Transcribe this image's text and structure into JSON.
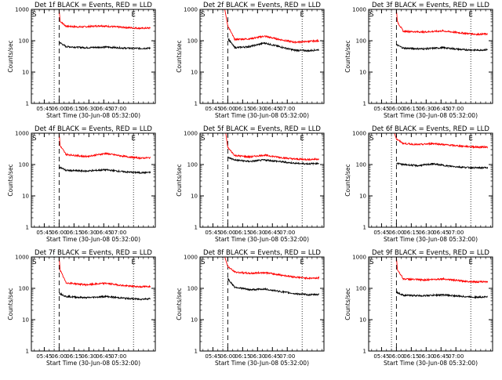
{
  "chart_data": [
    {
      "type": "line",
      "title": "Det 1f BLACK = Events, RED = LLD",
      "xlabel": "Start Time (30-Jun-08 05:32:00)",
      "ylabel": "Counts/sec",
      "xticks": [
        "05:45",
        "06:00",
        "06:15",
        "06:30",
        "06:45",
        "07:00"
      ],
      "yticks": [
        "1",
        "10",
        "100",
        "1000"
      ],
      "ylim": [
        1,
        1000
      ],
      "yscale": "log",
      "xlim_minutes_after_start": [
        0,
        125
      ],
      "markers": {
        "S": {
          "label": "S",
          "x": 3
        },
        "E": {
          "label": "E",
          "x": 103
        }
      },
      "dotted_lines": [
        23,
        103
      ],
      "dashed_lines": [
        28
      ],
      "series": [
        {
          "color": "#ff0000",
          "points": [
            [
              0,
              1000
            ],
            [
              28,
              1000
            ],
            [
              29,
              420
            ],
            [
              35,
              290
            ],
            [
              50,
              275
            ],
            [
              70,
              300
            ],
            [
              90,
              270
            ],
            [
              110,
              250
            ],
            [
              120,
              255
            ]
          ]
        },
        {
          "color": "#000000",
          "points": [
            [
              28,
              90
            ],
            [
              35,
              65
            ],
            [
              55,
              60
            ],
            [
              75,
              63
            ],
            [
              95,
              58
            ],
            [
              110,
              57
            ],
            [
              120,
              58
            ]
          ]
        }
      ]
    },
    {
      "type": "line",
      "title": "Det 2f BLACK = Events, RED = LLD",
      "xlabel": "Start Time (30-Jun-08 05:32:00)",
      "ylabel": "Counts/sec",
      "xticks": [
        "05:45",
        "06:00",
        "06:15",
        "06:30",
        "06:45",
        "07:00"
      ],
      "yticks": [
        "1",
        "10",
        "100",
        "1000"
      ],
      "ylim": [
        1,
        1000
      ],
      "yscale": "log",
      "xlim_minutes_after_start": [
        0,
        125
      ],
      "markers": {
        "S": {
          "label": "S",
          "x": 3
        },
        "E": {
          "label": "E",
          "x": 103
        }
      },
      "dotted_lines": [
        23,
        103
      ],
      "dashed_lines": [
        28
      ],
      "series": [
        {
          "color": "#ff0000",
          "points": [
            [
              0,
              1000
            ],
            [
              25,
              1000
            ],
            [
              28,
              300
            ],
            [
              35,
              110
            ],
            [
              50,
              115
            ],
            [
              65,
              140
            ],
            [
              80,
              110
            ],
            [
              95,
              90
            ],
            [
              110,
              95
            ],
            [
              120,
              100
            ]
          ]
        },
        {
          "color": "#000000",
          "points": [
            [
              28,
              120
            ],
            [
              35,
              60
            ],
            [
              50,
              65
            ],
            [
              65,
              85
            ],
            [
              80,
              65
            ],
            [
              95,
              50
            ],
            [
              110,
              48
            ],
            [
              120,
              52
            ]
          ]
        }
      ]
    },
    {
      "type": "line",
      "title": "Det 3f BLACK = Events, RED = LLD",
      "xlabel": "Start Time (30-Jun-08 05:32:00)",
      "ylabel": "Counts/sec",
      "xticks": [
        "05:45",
        "06:00",
        "06:15",
        "06:30",
        "06:45",
        "07:00"
      ],
      "yticks": [
        "1",
        "10",
        "100",
        "1000"
      ],
      "ylim": [
        1,
        1000
      ],
      "yscale": "log",
      "xlim_minutes_after_start": [
        0,
        125
      ],
      "markers": {
        "S": {
          "label": "S",
          "x": 3
        },
        "E": {
          "label": "E",
          "x": 103
        }
      },
      "dotted_lines": [
        23,
        103
      ],
      "dashed_lines": [
        28
      ],
      "series": [
        {
          "color": "#ff0000",
          "points": [
            [
              0,
              1000
            ],
            [
              28,
              1000
            ],
            [
              29,
              400
            ],
            [
              35,
              200
            ],
            [
              55,
              190
            ],
            [
              75,
              205
            ],
            [
              95,
              175
            ],
            [
              110,
              160
            ],
            [
              120,
              165
            ]
          ]
        },
        {
          "color": "#000000",
          "points": [
            [
              28,
              75
            ],
            [
              35,
              58
            ],
            [
              55,
              55
            ],
            [
              75,
              60
            ],
            [
              95,
              52
            ],
            [
              110,
              50
            ],
            [
              120,
              52
            ]
          ]
        }
      ]
    },
    {
      "type": "line",
      "title": "Det 4f BLACK = Events, RED = LLD",
      "xlabel": "Start Time (30-Jun-08 05:32:00)",
      "ylabel": "Counts/sec",
      "xticks": [
        "05:45",
        "06:00",
        "06:15",
        "06:30",
        "06:45",
        "07:00"
      ],
      "yticks": [
        "1",
        "10",
        "100",
        "1000"
      ],
      "ylim": [
        1,
        1000
      ],
      "yscale": "log",
      "xlim_minutes_after_start": [
        0,
        125
      ],
      "markers": {
        "S": {
          "label": "S",
          "x": 3
        },
        "E": {
          "label": "E",
          "x": 103
        }
      },
      "dotted_lines": [
        23,
        103
      ],
      "dashed_lines": [
        28
      ],
      "series": [
        {
          "color": "#ff0000",
          "points": [
            [
              0,
              1000
            ],
            [
              28,
              1000
            ],
            [
              29,
              400
            ],
            [
              35,
              210
            ],
            [
              55,
              180
            ],
            [
              75,
              225
            ],
            [
              95,
              180
            ],
            [
              110,
              160
            ],
            [
              120,
              165
            ]
          ]
        },
        {
          "color": "#000000",
          "points": [
            [
              28,
              85
            ],
            [
              35,
              65
            ],
            [
              55,
              62
            ],
            [
              75,
              68
            ],
            [
              95,
              58
            ],
            [
              110,
              55
            ],
            [
              120,
              56
            ]
          ]
        }
      ]
    },
    {
      "type": "line",
      "title": "Det 5f BLACK = Events, RED = LLD",
      "xlabel": "Start Time (30-Jun-08 05:32:00)",
      "ylabel": "Counts/sec",
      "xticks": [
        "05:45",
        "06:00",
        "06:15",
        "06:30",
        "06:45",
        "07:00"
      ],
      "yticks": [
        "1",
        "10",
        "100",
        "1000"
      ],
      "ylim": [
        1,
        1000
      ],
      "yscale": "log",
      "xlim_minutes_after_start": [
        0,
        125
      ],
      "markers": {
        "S": {
          "label": "S",
          "x": 3
        },
        "E": {
          "label": "E",
          "x": 103
        }
      },
      "dotted_lines": [
        23,
        103
      ],
      "dashed_lines": [
        28
      ],
      "series": [
        {
          "color": "#ff0000",
          "points": [
            [
              0,
              1000
            ],
            [
              26,
              1000
            ],
            [
              28,
              350
            ],
            [
              35,
              195
            ],
            [
              50,
              175
            ],
            [
              65,
              200
            ],
            [
              80,
              170
            ],
            [
              95,
              150
            ],
            [
              110,
              145
            ],
            [
              120,
              150
            ]
          ]
        },
        {
          "color": "#000000",
          "points": [
            [
              28,
              170
            ],
            [
              35,
              140
            ],
            [
              50,
              125
            ],
            [
              65,
              140
            ],
            [
              80,
              125
            ],
            [
              95,
              110
            ],
            [
              110,
              105
            ],
            [
              120,
              110
            ]
          ]
        }
      ]
    },
    {
      "type": "line",
      "title": "Det 6f BLACK = Events, RED = LLD",
      "xlabel": "Start Time (30-Jun-08 05:32:00)",
      "ylabel": "Counts/sec",
      "xticks": [
        "05:45",
        "06:00",
        "06:15",
        "06:30",
        "06:45",
        "07:00"
      ],
      "yticks": [
        "1",
        "10",
        "100",
        "1000"
      ],
      "ylim": [
        1,
        1000
      ],
      "yscale": "log",
      "xlim_minutes_after_start": [
        0,
        125
      ],
      "markers": {
        "S": {
          "label": "S",
          "x": 3
        },
        "E": {
          "label": "E",
          "x": 103
        }
      },
      "dotted_lines": [
        23,
        103
      ],
      "dashed_lines": [
        28
      ],
      "series": [
        {
          "color": "#ff0000",
          "points": [
            [
              0,
              1000
            ],
            [
              26,
              1000
            ],
            [
              28,
              650
            ],
            [
              35,
              470
            ],
            [
              50,
              430
            ],
            [
              65,
              470
            ],
            [
              80,
              420
            ],
            [
              95,
              385
            ],
            [
              110,
              360
            ],
            [
              120,
              365
            ]
          ]
        },
        {
          "color": "#000000",
          "points": [
            [
              28,
              110
            ],
            [
              35,
              100
            ],
            [
              50,
              92
            ],
            [
              65,
              105
            ],
            [
              80,
              90
            ],
            [
              95,
              82
            ],
            [
              110,
              78
            ],
            [
              120,
              80
            ]
          ]
        }
      ]
    },
    {
      "type": "line",
      "title": "Det 7f BLACK = Events, RED = LLD",
      "xlabel": "Start Time (30-Jun-08 05:32:00)",
      "ylabel": "Counts/sec",
      "xticks": [
        "05:45",
        "06:00",
        "06:15",
        "06:30",
        "06:45",
        "07:00"
      ],
      "yticks": [
        "1",
        "10",
        "100",
        "1000"
      ],
      "ylim": [
        1,
        1000
      ],
      "yscale": "log",
      "xlim_minutes_after_start": [
        0,
        125
      ],
      "markers": {
        "S": {
          "label": "S",
          "x": 3
        },
        "E": {
          "label": "E",
          "x": 103
        }
      },
      "dotted_lines": [
        23,
        103
      ],
      "dashed_lines": [
        28
      ],
      "series": [
        {
          "color": "#ff0000",
          "points": [
            [
              0,
              1000
            ],
            [
              28,
              1000
            ],
            [
              29,
              380
            ],
            [
              35,
              150
            ],
            [
              55,
              130
            ],
            [
              75,
              145
            ],
            [
              95,
              120
            ],
            [
              110,
              112
            ],
            [
              120,
              115
            ]
          ]
        },
        {
          "color": "#000000",
          "points": [
            [
              28,
              70
            ],
            [
              35,
              55
            ],
            [
              55,
              50
            ],
            [
              75,
              55
            ],
            [
              95,
              48
            ],
            [
              110,
              45
            ],
            [
              120,
              47
            ]
          ]
        }
      ]
    },
    {
      "type": "line",
      "title": "Det 8f BLACK = Events, RED = LLD",
      "xlabel": "Start Time (30-Jun-08 05:32:00)",
      "ylabel": "Counts/sec",
      "xticks": [
        "05:45",
        "06:00",
        "06:15",
        "06:30",
        "06:45",
        "07:00"
      ],
      "yticks": [
        "1",
        "10",
        "100",
        "1000"
      ],
      "ylim": [
        1,
        1000
      ],
      "yscale": "log",
      "xlim_minutes_after_start": [
        0,
        125
      ],
      "markers": {
        "S": {
          "label": "S",
          "x": 3
        },
        "E": {
          "label": "E",
          "x": 103
        }
      },
      "dotted_lines": [
        23,
        103
      ],
      "dashed_lines": [
        28
      ],
      "series": [
        {
          "color": "#ff0000",
          "points": [
            [
              0,
              1000
            ],
            [
              25,
              1000
            ],
            [
              28,
              500
            ],
            [
              35,
              330
            ],
            [
              50,
              300
            ],
            [
              65,
              320
            ],
            [
              80,
              270
            ],
            [
              95,
              230
            ],
            [
              110,
              210
            ],
            [
              120,
              215
            ]
          ]
        },
        {
          "color": "#000000",
          "points": [
            [
              28,
              200
            ],
            [
              35,
              110
            ],
            [
              50,
              90
            ],
            [
              65,
              95
            ],
            [
              80,
              80
            ],
            [
              95,
              68
            ],
            [
              110,
              62
            ],
            [
              120,
              64
            ]
          ]
        }
      ]
    },
    {
      "type": "line",
      "title": "Det 9f BLACK = Events, RED = LLD",
      "xlabel": "Start Time (30-Jun-08 05:32:00)",
      "ylabel": "Counts/sec",
      "xticks": [
        "05:45",
        "06:00",
        "06:15",
        "06:30",
        "06:45",
        "07:00"
      ],
      "yticks": [
        "1",
        "10",
        "100",
        "1000"
      ],
      "ylim": [
        1,
        1000
      ],
      "yscale": "log",
      "xlim_minutes_after_start": [
        0,
        125
      ],
      "markers": {
        "S": {
          "label": "S",
          "x": 3
        },
        "E": {
          "label": "E",
          "x": 103
        }
      },
      "dotted_lines": [
        23,
        103
      ],
      "dashed_lines": [
        28
      ],
      "series": [
        {
          "color": "#ff0000",
          "points": [
            [
              0,
              1000
            ],
            [
              28,
              1000
            ],
            [
              29,
              400
            ],
            [
              35,
              200
            ],
            [
              55,
              185
            ],
            [
              75,
              200
            ],
            [
              95,
              170
            ],
            [
              110,
              160
            ],
            [
              120,
              165
            ]
          ]
        },
        {
          "color": "#000000",
          "points": [
            [
              28,
              75
            ],
            [
              35,
              60
            ],
            [
              55,
              58
            ],
            [
              75,
              62
            ],
            [
              95,
              55
            ],
            [
              110,
              52
            ],
            [
              120,
              54
            ]
          ]
        }
      ]
    }
  ]
}
